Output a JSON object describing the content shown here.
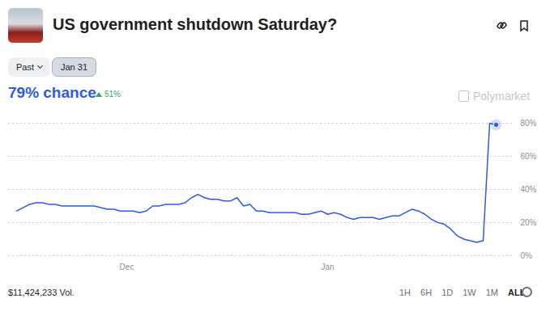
{
  "header": {
    "filters": [
      "Past",
      "Jan 31"
    ],
    "probability": "79% chance",
    "change": "51%",
    "watermark": "Polymarket"
  },
  "chart_data": {
    "type": "line",
    "title": "US government shutdown Saturday?",
    "categories": [
      null,
      null,
      null,
      null,
      null,
      null,
      null,
      null,
      null,
      null,
      null,
      null,
      null,
      null,
      null,
      null,
      null,
      "Dec",
      null,
      null,
      null,
      null,
      null,
      null,
      null,
      null,
      null,
      null,
      null,
      null,
      null,
      null,
      null,
      null,
      null,
      null,
      null,
      null,
      null,
      null,
      null,
      null,
      null,
      null,
      null,
      null,
      null,
      null,
      "Jan",
      null,
      null,
      null,
      null,
      null,
      null,
      null,
      null,
      null,
      null,
      null,
      null,
      null,
      null,
      null,
      null,
      null,
      null,
      null,
      null,
      null,
      null,
      null,
      null,
      null,
      null
    ],
    "values": [
      27,
      29,
      31,
      32,
      32,
      31,
      31,
      30,
      30,
      30,
      30,
      30,
      30,
      29,
      28,
      28,
      27,
      27,
      27,
      26,
      27,
      30,
      30,
      31,
      31,
      31,
      32,
      35,
      37,
      35,
      34,
      34,
      33,
      33,
      35,
      30,
      31,
      27,
      27,
      26,
      26,
      26,
      26,
      26,
      25,
      25,
      26,
      27,
      25,
      26,
      25,
      23,
      22,
      23,
      23,
      23,
      22,
      23,
      24,
      24,
      26,
      28,
      27,
      25,
      22,
      20,
      19,
      16,
      12,
      10,
      9,
      8,
      9,
      80,
      79
    ],
    "color": "#2d5be3",
    "ylim": [
      0,
      80
    ],
    "yticks": [
      {
        "value": 0,
        "label": "0%"
      },
      {
        "value": 20,
        "label": "20%"
      },
      {
        "value": 40,
        "label": "40%"
      },
      {
        "value": 60,
        "label": "60%"
      },
      {
        "value": 80,
        "label": "80%"
      }
    ],
    "grid": true
  },
  "footer": {
    "volume": "$11,424,233 Vol.",
    "ranges": [
      "1H",
      "6H",
      "1D",
      "1W",
      "1M",
      "ALL"
    ]
  }
}
